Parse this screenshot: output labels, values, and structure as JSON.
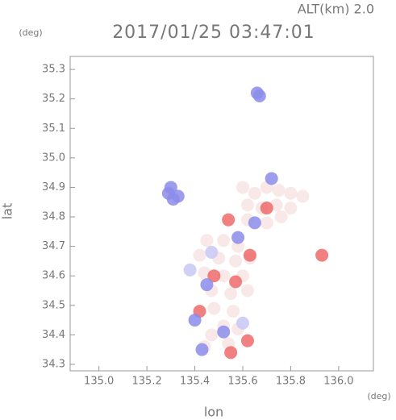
{
  "chart_data": {
    "type": "scatter",
    "title": "2017/01/25 03:47:01",
    "subtitle": "ALT(km)  2.0",
    "xlabel": "lon",
    "xunit": "(deg)",
    "ylabel": "lat",
    "yunit": "(deg)",
    "xlim": [
      134.88,
      136.145
    ],
    "ylim": [
      34.278,
      35.344
    ],
    "xticks": [
      {
        "value": 135.0,
        "label": "135.0"
      },
      135.2,
      135.4,
      135.6,
      135.8,
      {
        "value": 136.0,
        "label": "136.0"
      }
    ],
    "yticks": [
      35.3,
      35.2,
      35.1,
      {
        "value": 35.0,
        "label": "35.0"
      },
      34.9,
      34.8,
      34.7,
      34.6,
      34.5,
      34.4,
      34.3
    ],
    "x": [
      135.6,
      135.65,
      135.7,
      135.75,
      135.8,
      135.85,
      135.62,
      135.68,
      135.74,
      135.8,
      135.62,
      135.7,
      135.76,
      135.45,
      135.52,
      135.58,
      135.42,
      135.5,
      135.57,
      135.63,
      135.44,
      135.52,
      135.6,
      135.47,
      135.55,
      135.62,
      135.48,
      135.56,
      135.52,
      135.58,
      135.47,
      135.54,
      135.44,
      135.54,
      135.7,
      135.57,
      135.48,
      135.42,
      135.62,
      135.55,
      135.93,
      135.63,
      135.29,
      135.31,
      135.33,
      135.3,
      135.66,
      135.67,
      135.45,
      135.52,
      135.4,
      135.65,
      135.58,
      135.43,
      135.72,
      135.47,
      135.38,
      135.6
    ],
    "y": [
      34.9,
      34.88,
      34.9,
      34.89,
      34.88,
      34.87,
      34.84,
      34.83,
      34.84,
      34.83,
      34.79,
      34.78,
      34.8,
      34.72,
      34.72,
      34.7,
      34.67,
      34.66,
      34.65,
      34.66,
      34.61,
      34.6,
      34.6,
      34.55,
      34.54,
      34.55,
      34.49,
      34.48,
      34.43,
      34.42,
      34.4,
      34.37,
      34.36,
      34.79,
      34.83,
      34.58,
      34.6,
      34.48,
      34.38,
      34.34,
      34.67,
      34.67,
      34.88,
      34.86,
      34.87,
      34.9,
      35.22,
      35.21,
      34.57,
      34.41,
      34.45,
      34.78,
      34.73,
      34.35,
      34.93,
      34.68,
      34.62,
      34.44
    ],
    "colors": [
      "#f8e4e4",
      "#f8e4e4",
      "#f8e4e4",
      "#f8e4e4",
      "#f8e4e4",
      "#f8e4e4",
      "#f8e4e4",
      "#f8e4e4",
      "#f8e4e4",
      "#f8e4e4",
      "#f8e4e4",
      "#f8e4e4",
      "#f8e4e4",
      "#f8e4e4",
      "#f8e4e4",
      "#f8e4e4",
      "#f8e4e4",
      "#f8e4e4",
      "#f8e4e4",
      "#f8e4e4",
      "#f8e4e4",
      "#f8e4e4",
      "#f8e4e4",
      "#f8e4e4",
      "#f8e4e4",
      "#f8e4e4",
      "#f8e4e4",
      "#f8e4e4",
      "#f8e4e4",
      "#f8e4e4",
      "#f8e4e4",
      "#f8e4e4",
      "#f8e4e4",
      "#ee6a6a",
      "#ee6a6a",
      "#ee6a6a",
      "#ee6a6a",
      "#ee6a6a",
      "#ee6a6a",
      "#ee6a6a",
      "#ee6a6a",
      "#ee6a6a",
      "#8c8cea",
      "#8c8cea",
      "#8c8cea",
      "#8c8cea",
      "#8c8cea",
      "#8c8cea",
      "#8c8cea",
      "#8c8cea",
      "#8c8cea",
      "#8c8cea",
      "#8c8cea",
      "#8c8cea",
      "#8c8cea",
      "#c8c8f4",
      "#c8c8f4",
      "#c8c8f4"
    ]
  }
}
